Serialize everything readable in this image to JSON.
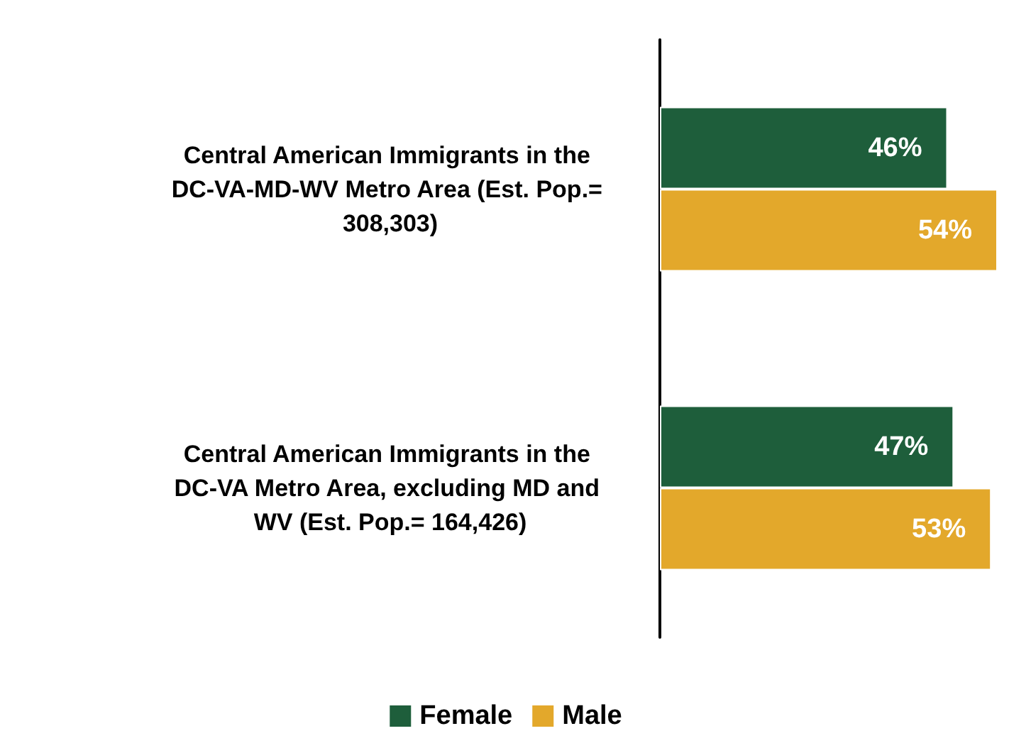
{
  "chart_data": {
    "type": "bar",
    "orientation": "horizontal",
    "tick_labels": "y",
    "categories": [
      "Central American Immigrants in the DC-VA-MD-WV Metro Area (Est. Pop.= 308,303)",
      "Central American Immigrants in the DC-VA Metro Area, excluding MD and WV (Est. Pop.= 164,426)"
    ],
    "series": [
      {
        "name": "Female",
        "color": "#1e5e3b",
        "values": [
          46,
          47
        ],
        "value_labels": [
          "46%",
          "47%"
        ]
      },
      {
        "name": "Male",
        "color": "#e3a82b",
        "values": [
          54,
          53
        ],
        "value_labels": [
          "54%",
          "53%"
        ]
      }
    ],
    "legend": "bottom"
  }
}
